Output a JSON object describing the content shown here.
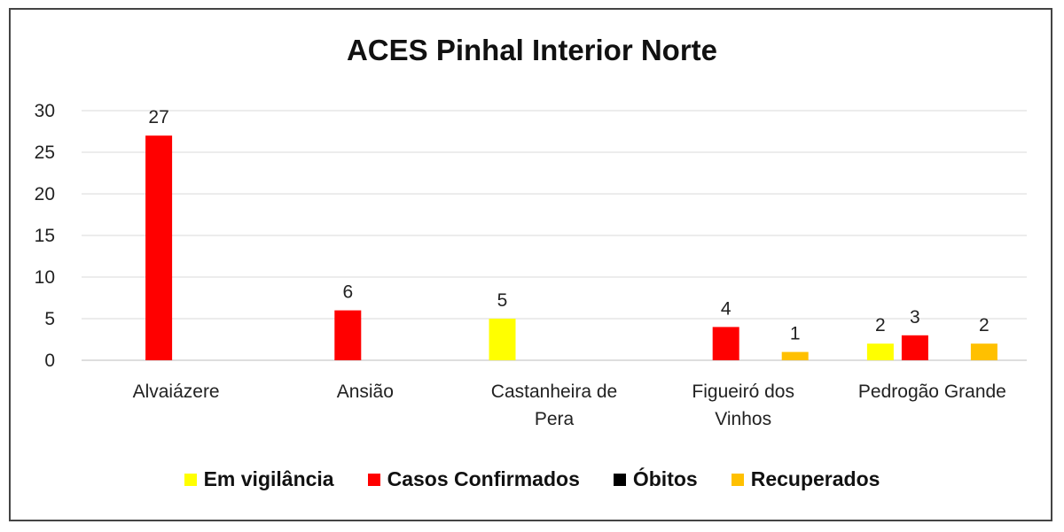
{
  "chart_data": {
    "type": "bar",
    "title": "ACES Pinhal Interior Norte",
    "categories": [
      [
        "Alvaiázere"
      ],
      [
        "Ansião"
      ],
      [
        "Castanheira de",
        "Pera"
      ],
      [
        "Figueiró dos",
        "Vinhos"
      ],
      [
        "Pedrogão Grande"
      ]
    ],
    "series": [
      {
        "name": "Em vigilância",
        "color": "#ffff00",
        "values": [
          0,
          0,
          5,
          0,
          2
        ]
      },
      {
        "name": "Casos Confirmados",
        "color": "#ff0000",
        "values": [
          27,
          6,
          0,
          4,
          3
        ]
      },
      {
        "name": "Óbitos",
        "color": "#000000",
        "values": [
          0,
          0,
          0,
          0,
          0
        ]
      },
      {
        "name": "Recuperados",
        "color": "#ffc000",
        "values": [
          0,
          0,
          0,
          1,
          2
        ]
      }
    ],
    "ylim": [
      0,
      30
    ],
    "yticks": [
      0,
      5,
      10,
      15,
      20,
      25,
      30
    ],
    "grid": true,
    "legend_position": "bottom"
  }
}
